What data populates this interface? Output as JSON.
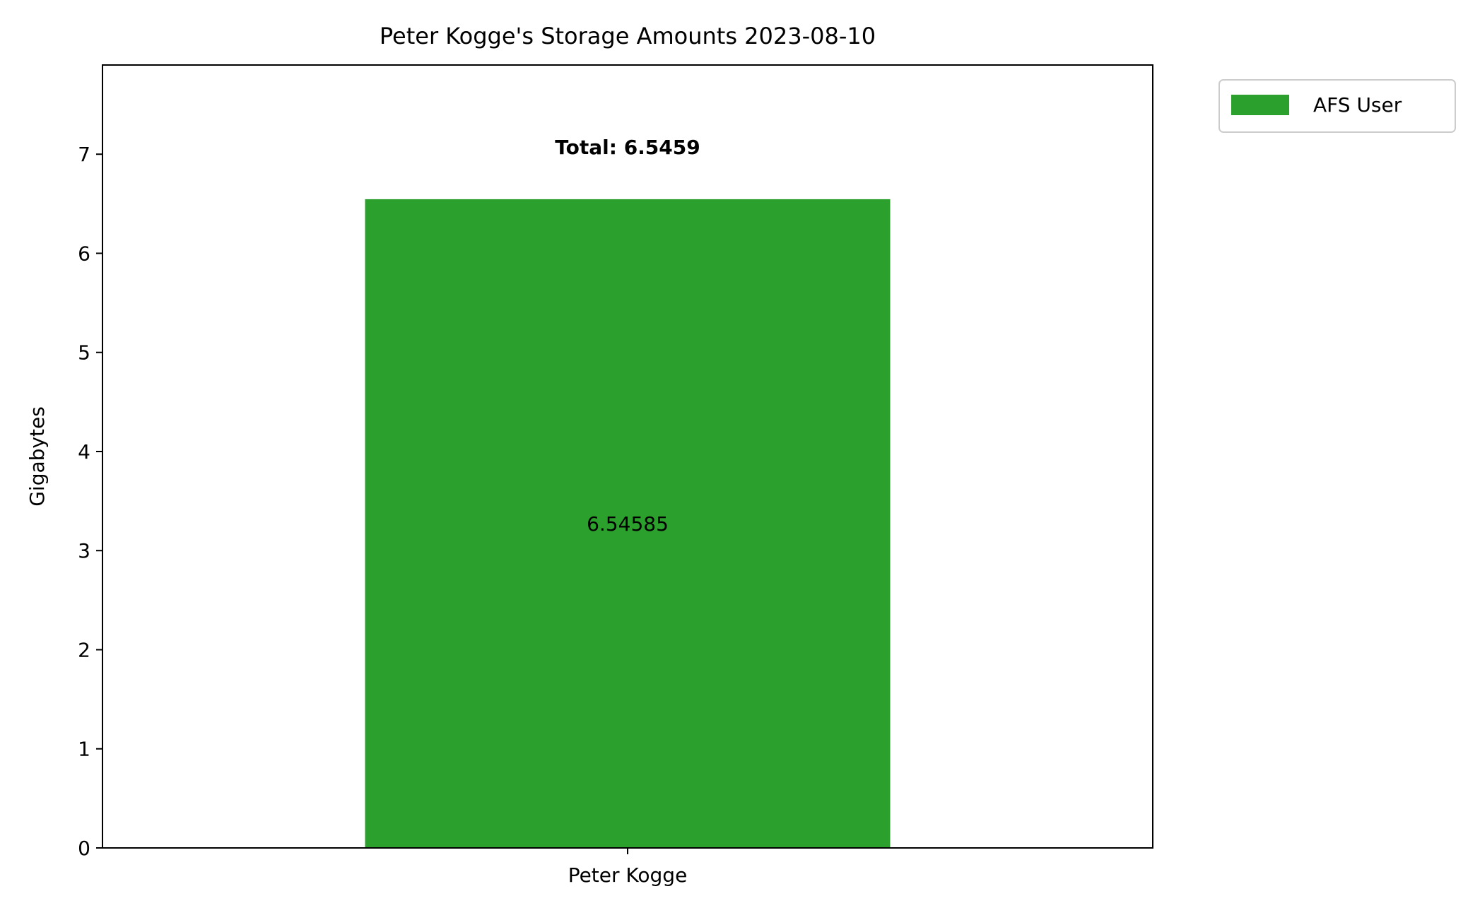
{
  "chart_data": {
    "type": "bar",
    "title": "Peter Kogge's Storage Amounts 2023-08-10",
    "xlabel": "",
    "ylabel": "Gigabytes",
    "categories": [
      "Peter Kogge"
    ],
    "series": [
      {
        "name": "AFS User",
        "color": "#2ca02c",
        "values": [
          6.54585
        ],
        "labels": [
          "6.54585"
        ]
      }
    ],
    "totals": [
      "Total: 6.5459"
    ],
    "totals_values": [
      6.5459
    ],
    "ylim": [
      0,
      7.9
    ],
    "yticks": [
      0,
      1,
      2,
      3,
      4,
      5,
      6,
      7
    ],
    "ytick_labels": [
      "0",
      "1",
      "2",
      "3",
      "4",
      "5",
      "6",
      "7"
    ],
    "grid": false,
    "legend_position": "outside upper right"
  }
}
